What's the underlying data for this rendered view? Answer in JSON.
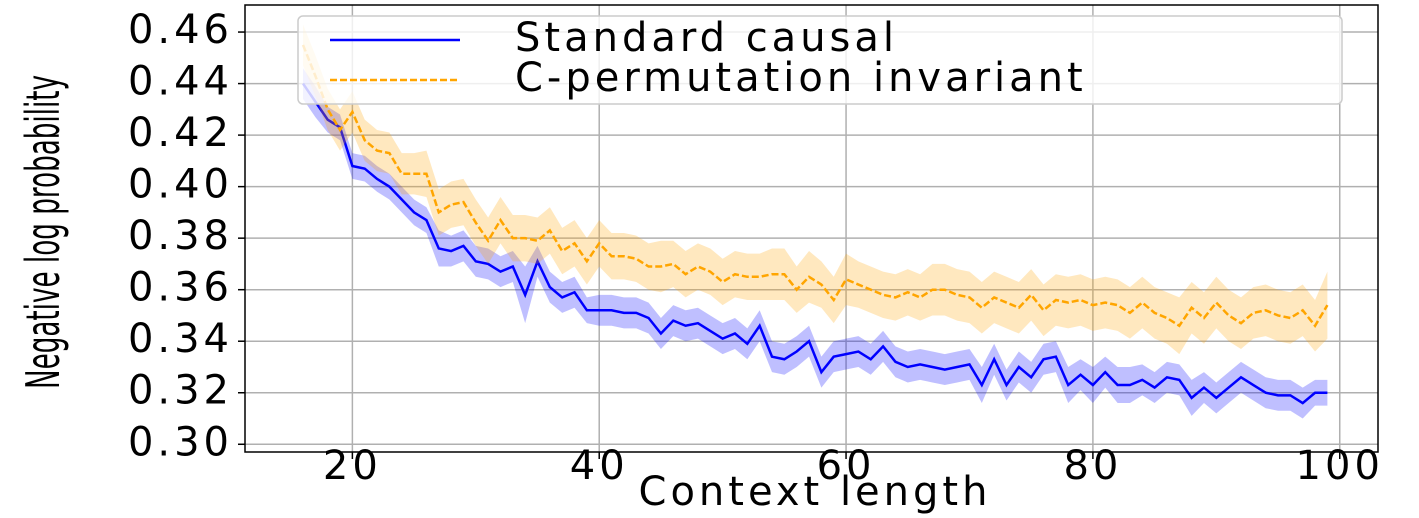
{
  "chart_data": {
    "type": "line",
    "xlabel": "Context length",
    "ylabel": "Negative log probability",
    "x": [
      16,
      17,
      18,
      19,
      20,
      21,
      22,
      23,
      24,
      25,
      26,
      27,
      28,
      29,
      30,
      31,
      32,
      33,
      34,
      35,
      36,
      37,
      38,
      39,
      40,
      41,
      42,
      43,
      44,
      45,
      46,
      47,
      48,
      49,
      50,
      51,
      52,
      53,
      54,
      55,
      56,
      57,
      58,
      59,
      60,
      61,
      62,
      63,
      64,
      65,
      66,
      67,
      68,
      69,
      70,
      71,
      72,
      73,
      74,
      75,
      76,
      77,
      78,
      79,
      80,
      81,
      82,
      83,
      84,
      85,
      86,
      87,
      88,
      89,
      90,
      91,
      92,
      93,
      94,
      95,
      96,
      97,
      98,
      99
    ],
    "series": [
      {
        "name": "Standard causal",
        "color": "#0000ff",
        "dash": false,
        "values": [
          0.44,
          0.433,
          0.426,
          0.423,
          0.408,
          0.407,
          0.403,
          0.4,
          0.395,
          0.39,
          0.387,
          0.376,
          0.375,
          0.377,
          0.371,
          0.37,
          0.367,
          0.369,
          0.358,
          0.371,
          0.361,
          0.357,
          0.359,
          0.352,
          0.352,
          0.352,
          0.351,
          0.351,
          0.349,
          0.343,
          0.348,
          0.346,
          0.347,
          0.344,
          0.341,
          0.343,
          0.339,
          0.346,
          0.334,
          0.333,
          0.336,
          0.34,
          0.328,
          0.334,
          0.335,
          0.336,
          0.333,
          0.338,
          0.332,
          0.33,
          0.331,
          0.33,
          0.329,
          0.33,
          0.331,
          0.323,
          0.333,
          0.323,
          0.33,
          0.326,
          0.333,
          0.334,
          0.323,
          0.327,
          0.323,
          0.328,
          0.323,
          0.323,
          0.325,
          0.322,
          0.326,
          0.325,
          0.318,
          0.322,
          0.318,
          0.322,
          0.326,
          0.323,
          0.32,
          0.319,
          0.319,
          0.316,
          0.32,
          0.32
        ],
        "errors": [
          0.006,
          0.006,
          0.005,
          0.005,
          0.005,
          0.005,
          0.005,
          0.005,
          0.005,
          0.005,
          0.005,
          0.007,
          0.006,
          0.006,
          0.006,
          0.006,
          0.006,
          0.006,
          0.011,
          0.006,
          0.006,
          0.006,
          0.006,
          0.005,
          0.006,
          0.006,
          0.006,
          0.006,
          0.006,
          0.006,
          0.006,
          0.006,
          0.006,
          0.006,
          0.006,
          0.006,
          0.006,
          0.006,
          0.006,
          0.006,
          0.006,
          0.006,
          0.006,
          0.006,
          0.006,
          0.006,
          0.006,
          0.006,
          0.006,
          0.006,
          0.006,
          0.006,
          0.006,
          0.006,
          0.006,
          0.007,
          0.006,
          0.006,
          0.006,
          0.006,
          0.006,
          0.006,
          0.007,
          0.006,
          0.007,
          0.006,
          0.007,
          0.007,
          0.006,
          0.006,
          0.006,
          0.006,
          0.007,
          0.006,
          0.006,
          0.006,
          0.006,
          0.006,
          0.006,
          0.006,
          0.006,
          0.006,
          0.005,
          0.005
        ]
      },
      {
        "name": "C-permutation invariant",
        "color": "#ffa500",
        "dash": true,
        "values": [
          0.455,
          0.443,
          0.43,
          0.422,
          0.429,
          0.418,
          0.414,
          0.413,
          0.405,
          0.405,
          0.405,
          0.39,
          0.393,
          0.394,
          0.386,
          0.379,
          0.387,
          0.38,
          0.38,
          0.379,
          0.383,
          0.375,
          0.378,
          0.371,
          0.378,
          0.373,
          0.373,
          0.372,
          0.369,
          0.369,
          0.37,
          0.366,
          0.369,
          0.367,
          0.363,
          0.366,
          0.365,
          0.365,
          0.366,
          0.366,
          0.36,
          0.365,
          0.362,
          0.356,
          0.364,
          0.362,
          0.36,
          0.358,
          0.357,
          0.359,
          0.357,
          0.36,
          0.36,
          0.358,
          0.357,
          0.353,
          0.357,
          0.355,
          0.353,
          0.358,
          0.352,
          0.356,
          0.355,
          0.356,
          0.354,
          0.355,
          0.354,
          0.351,
          0.355,
          0.351,
          0.349,
          0.346,
          0.353,
          0.349,
          0.355,
          0.35,
          0.347,
          0.351,
          0.352,
          0.35,
          0.349,
          0.352,
          0.346,
          0.354
        ],
        "errors": [
          0.008,
          0.008,
          0.008,
          0.008,
          0.008,
          0.008,
          0.008,
          0.008,
          0.008,
          0.008,
          0.009,
          0.009,
          0.009,
          0.009,
          0.009,
          0.009,
          0.009,
          0.009,
          0.009,
          0.009,
          0.009,
          0.009,
          0.009,
          0.009,
          0.009,
          0.009,
          0.009,
          0.009,
          0.009,
          0.01,
          0.009,
          0.009,
          0.009,
          0.009,
          0.009,
          0.009,
          0.009,
          0.009,
          0.01,
          0.01,
          0.009,
          0.01,
          0.009,
          0.009,
          0.01,
          0.009,
          0.009,
          0.009,
          0.009,
          0.009,
          0.009,
          0.01,
          0.01,
          0.01,
          0.01,
          0.01,
          0.01,
          0.01,
          0.01,
          0.01,
          0.01,
          0.01,
          0.01,
          0.01,
          0.01,
          0.01,
          0.01,
          0.01,
          0.01,
          0.01,
          0.01,
          0.011,
          0.01,
          0.01,
          0.01,
          0.01,
          0.01,
          0.01,
          0.01,
          0.01,
          0.01,
          0.01,
          0.01,
          0.013
        ]
      }
    ],
    "xlim": [
      11.3,
      103.1
    ],
    "xticks": [
      20,
      40,
      60,
      80,
      100
    ],
    "ylim": [
      0.297,
      0.4705
    ],
    "yticks": [
      {
        "value": 0.3,
        "label": "0.30"
      },
      0.32,
      0.34,
      0.36,
      0.38,
      {
        "value": 0.4,
        "label": "0.40"
      },
      0.42,
      0.44,
      0.46
    ],
    "grid": true,
    "legend": "upper right"
  }
}
